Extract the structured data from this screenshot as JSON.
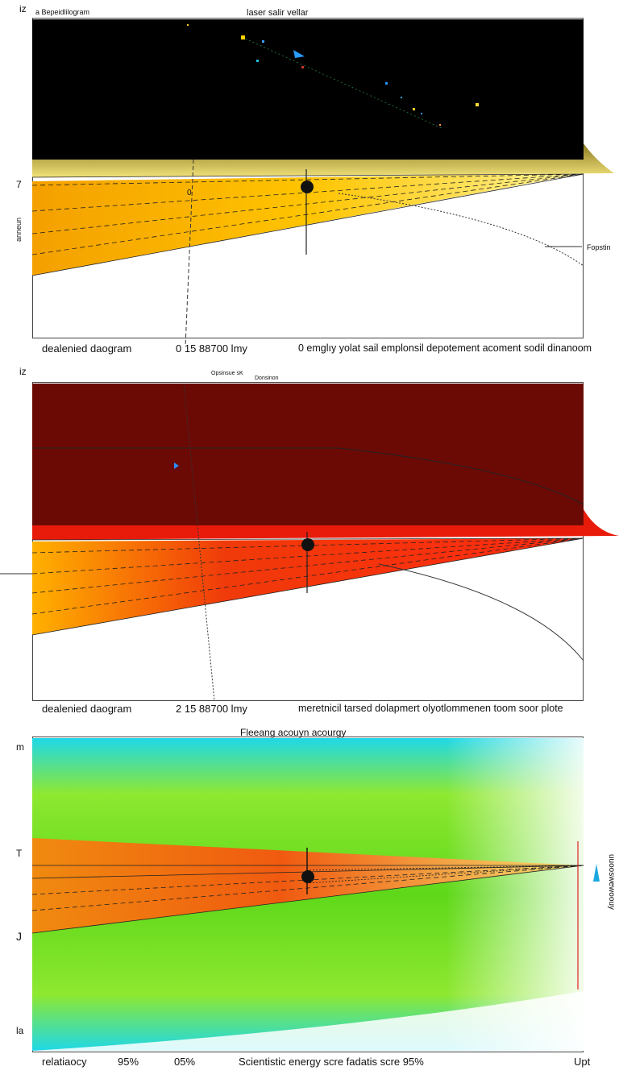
{
  "panel1": {
    "corner_label": "a Bepeidlilogram",
    "title": "laser salir vellar",
    "right_label": "Fopstin",
    "left_tick": "7",
    "left_tick2": "0",
    "bottom_left": "dealenied daogram",
    "bottom_mid": "0 15 88700 lmy",
    "bottom_right": "0 emglıy yolat sail emplonsil depotement acoment sodil dinanoom",
    "side_top": "iz",
    "side_mid": "anneun"
  },
  "panel2": {
    "small_label_a": "Opsinsue sK",
    "small_label_b": "Donsinon",
    "bottom_left": "dealenied daogram",
    "bottom_mid": "2 15 88700 lmy",
    "bottom_right": "meretnicil tarsed dolapmert olyotlommenen toom soor plote",
    "side_top": "iz"
  },
  "panel3": {
    "title": "Fleeang acouyn acourgy",
    "left_tick_top": "m",
    "left_tick_mid": "T",
    "left_tick_low": "J",
    "left_tick_bottom": "la",
    "right_vertical": "uuooswewoouy",
    "bottom_labels": [
      "relatiaocy",
      "95%",
      "05%",
      "Scientistic energy scre fadatis scre 95%",
      "Upt"
    ]
  },
  "colors": {
    "panel1_bg": "#000000",
    "panel1_beam": "#f5c400",
    "panel2_bg": "#6b0a05",
    "panel2_beam": "#e81b0b",
    "panel3_bg": "#6fe020",
    "panel3_beam": "#f06a10",
    "panel3_edge": "#19d7e6"
  }
}
